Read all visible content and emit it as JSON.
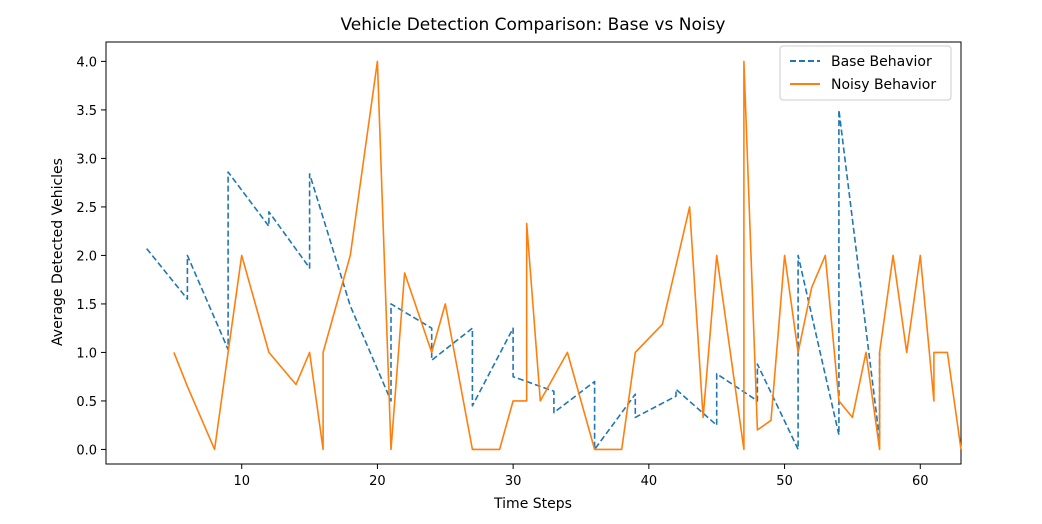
{
  "chart_data": {
    "type": "line",
    "title": "Vehicle Detection Comparison: Base vs Noisy",
    "xlabel": "Time Steps",
    "ylabel": "Average Detected Vehicles",
    "xlim": [
      0,
      63
    ],
    "ylim": [
      -0.15,
      4.2
    ],
    "xticks": [
      10,
      20,
      30,
      40,
      50,
      60
    ],
    "yticks": [
      0.0,
      0.5,
      1.0,
      1.5,
      2.0,
      2.5,
      3.0,
      3.5,
      4.0
    ],
    "grid": false,
    "legend_position": "top-right",
    "series": [
      {
        "name": "Base Behavior",
        "color": "#1f77b4",
        "style": "dashed",
        "x": [
          3.0,
          6.0,
          6.0,
          9.0,
          9.0,
          12.0,
          12.0,
          15.0,
          15.0,
          18.0,
          18.0,
          21.0,
          21.0,
          24.0,
          24.0,
          27.0,
          27.0,
          30.0,
          30.0,
          33.0,
          33.0,
          36.0,
          36.0,
          39.0,
          39.0,
          42.0,
          42.0,
          45.0,
          45.0,
          48.0,
          48.0,
          51.0,
          51.0,
          54.0,
          54.0,
          57.0,
          57.0
        ],
        "y": [
          2.07,
          1.55,
          2.0,
          1.03,
          2.86,
          2.3,
          2.45,
          1.87,
          2.84,
          1.48,
          1.48,
          0.5,
          1.5,
          1.25,
          0.92,
          1.25,
          0.45,
          1.25,
          0.75,
          0.6,
          0.38,
          0.7,
          0.0,
          0.57,
          0.33,
          0.55,
          0.62,
          0.25,
          0.78,
          0.5,
          0.88,
          0.0,
          2.0,
          0.15,
          3.5,
          0.1,
          1.0
        ]
      },
      {
        "name": "Noisy Behavior",
        "color": "#ff7f0e",
        "style": "solid",
        "x": [
          5.0,
          6.0,
          8.0,
          9.0,
          10.0,
          12.0,
          14.0,
          15.0,
          16.0,
          16.0,
          18.0,
          20.0,
          21.0,
          22.0,
          24.0,
          25.0,
          27.0,
          29.0,
          30.0,
          31.0,
          31.0,
          32.0,
          34.0,
          36.0,
          38.0,
          39.0,
          41.0,
          43.0,
          44.0,
          45.0,
          47.0,
          47.0,
          48.0,
          49.0,
          50.0,
          51.0,
          52.0,
          53.0,
          54.0,
          55.0,
          56.0,
          57.0,
          57.0,
          58.0,
          59.0,
          60.0,
          61.0,
          61.0,
          62.0,
          63.0
        ],
        "y": [
          1.0,
          0.65,
          0.0,
          1.0,
          2.0,
          1.0,
          0.67,
          1.0,
          0.0,
          1.0,
          2.0,
          4.0,
          0.0,
          1.82,
          1.0,
          1.5,
          0.0,
          0.0,
          0.5,
          0.5,
          2.33,
          0.5,
          1.0,
          0.0,
          0.0,
          1.0,
          1.29,
          2.5,
          0.33,
          2.0,
          0.0,
          4.0,
          0.2,
          0.3,
          2.0,
          1.0,
          1.67,
          2.0,
          0.5,
          0.33,
          1.0,
          0.0,
          1.0,
          2.0,
          1.0,
          2.0,
          0.5,
          1.0,
          1.0,
          0.0
        ]
      }
    ]
  }
}
